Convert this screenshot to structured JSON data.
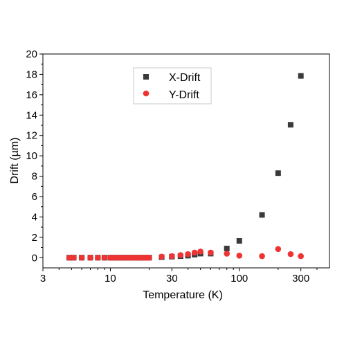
{
  "chart_data": {
    "type": "scatter",
    "xlabel": "Temperature (K)",
    "ylabel": "Drift (µm)",
    "xscale": "log",
    "xlim": [
      3,
      500
    ],
    "ylim": [
      -1,
      20
    ],
    "xticks": [
      3,
      10,
      30,
      100,
      300
    ],
    "xtick_labels": [
      "3",
      "10",
      "30",
      "100",
      "300"
    ],
    "yticks": [
      0,
      2,
      4,
      6,
      8,
      10,
      12,
      14,
      16,
      18,
      20
    ],
    "ytick_labels": [
      "0",
      "2",
      "4",
      "6",
      "8",
      "10",
      "12",
      "14",
      "16",
      "18",
      "20"
    ],
    "grid": false,
    "legend_position": "top-center",
    "series": [
      {
        "name": "X-Drift",
        "marker": "square",
        "color": "#3a3a3a",
        "x": [
          4.8,
          5.2,
          6,
          7,
          8,
          9,
          10,
          10.7,
          11.5,
          12.3,
          13.2,
          14.1,
          15,
          16,
          17,
          18,
          19,
          20,
          25,
          30,
          35,
          40,
          45,
          50,
          60,
          80,
          100,
          150,
          200,
          250,
          300
        ],
        "y": [
          0,
          0,
          0,
          0,
          0,
          0,
          0,
          0,
          0,
          0,
          0,
          0,
          0,
          0,
          0,
          0,
          0,
          0,
          0.05,
          0.1,
          0.15,
          0.2,
          0.3,
          0.4,
          0.4,
          0.9,
          1.65,
          4.2,
          8.3,
          13.05,
          17.85
        ]
      },
      {
        "name": "Y-Drift",
        "marker": "circle",
        "color": "#ee3333",
        "x": [
          4.8,
          5.2,
          6,
          7,
          8,
          9,
          10,
          10.7,
          11.5,
          12.3,
          13.2,
          14.1,
          15,
          16,
          17,
          18,
          19,
          20,
          25,
          30,
          35,
          40,
          45,
          50,
          60,
          80,
          100,
          150,
          200,
          250,
          300
        ],
        "y": [
          0,
          0,
          0,
          0,
          0,
          0,
          0,
          0,
          0,
          0,
          0,
          0,
          0,
          0,
          0,
          0,
          0,
          0,
          0.1,
          0.15,
          0.25,
          0.35,
          0.5,
          0.6,
          0.5,
          0.4,
          0.2,
          0.15,
          0.85,
          0.35,
          0.15
        ]
      }
    ]
  }
}
